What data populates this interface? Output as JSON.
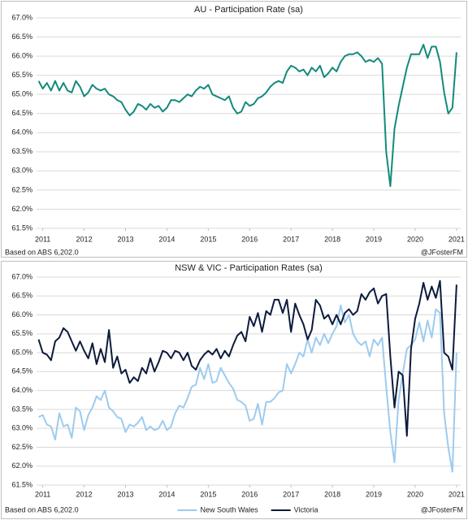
{
  "chart_data": [
    {
      "type": "line",
      "title": "AU - Participation Rate (sa)",
      "x": [
        2010.9,
        2011,
        2011.1,
        2011.2,
        2011.3,
        2011.4,
        2011.5,
        2011.6,
        2011.7,
        2011.8,
        2011.9,
        2012,
        2012.1,
        2012.2,
        2012.3,
        2012.4,
        2012.5,
        2012.6,
        2012.7,
        2012.8,
        2012.9,
        2013,
        2013.1,
        2013.2,
        2013.3,
        2013.4,
        2013.5,
        2013.6,
        2013.7,
        2013.8,
        2013.9,
        2014,
        2014.1,
        2014.2,
        2014.3,
        2014.4,
        2014.5,
        2014.6,
        2014.7,
        2014.8,
        2014.9,
        2015,
        2015.1,
        2015.2,
        2015.3,
        2015.4,
        2015.5,
        2015.6,
        2015.7,
        2015.8,
        2015.9,
        2016,
        2016.1,
        2016.2,
        2016.3,
        2016.4,
        2016.5,
        2016.6,
        2016.7,
        2016.8,
        2016.9,
        2017,
        2017.1,
        2017.2,
        2017.3,
        2017.4,
        2017.5,
        2017.6,
        2017.7,
        2017.8,
        2017.9,
        2018,
        2018.1,
        2018.2,
        2018.3,
        2018.4,
        2018.5,
        2018.6,
        2018.7,
        2018.8,
        2018.9,
        2019,
        2019.1,
        2019.2,
        2019.3,
        2019.4,
        2019.5,
        2019.6,
        2019.7,
        2019.8,
        2019.9,
        2020,
        2020.1,
        2020.2,
        2020.3,
        2020.4,
        2020.5,
        2020.6,
        2020.7,
        2020.8,
        2020.9,
        2021
      ],
      "values": [
        65.35,
        65.15,
        65.3,
        65.1,
        65.35,
        65.1,
        65.3,
        65.1,
        65.05,
        65.35,
        65.2,
        64.95,
        65.05,
        65.25,
        65.15,
        65.1,
        65.15,
        65.0,
        64.95,
        64.85,
        64.8,
        64.6,
        64.45,
        64.55,
        64.75,
        64.7,
        64.6,
        64.75,
        64.65,
        64.7,
        64.55,
        64.65,
        64.85,
        64.85,
        64.8,
        64.9,
        65.0,
        64.95,
        65.1,
        65.2,
        65.15,
        65.25,
        65.0,
        64.95,
        64.9,
        64.85,
        64.95,
        64.65,
        64.5,
        64.55,
        64.8,
        64.7,
        64.75,
        64.9,
        64.95,
        65.05,
        65.2,
        65.3,
        65.35,
        65.3,
        65.6,
        65.75,
        65.7,
        65.6,
        65.65,
        65.5,
        65.7,
        65.6,
        65.75,
        65.45,
        65.55,
        65.7,
        65.6,
        65.85,
        66.0,
        66.05,
        66.05,
        66.1,
        66.0,
        65.85,
        65.9,
        65.85,
        65.95,
        65.8,
        63.5,
        62.6,
        64.1,
        64.7,
        65.2,
        65.7,
        66.05,
        66.05,
        66.05,
        66.3,
        65.95,
        66.25,
        66.25,
        65.85,
        65.05,
        64.5,
        64.65,
        66.1
      ],
      "color": "#138a7c",
      "xlim": [
        2010.85,
        2021.1
      ],
      "xticks": [
        2011,
        2012,
        2013,
        2014,
        2015,
        2016,
        2017,
        2018,
        2019,
        2020,
        2021
      ],
      "ylim": [
        61.5,
        67.0
      ],
      "yticks": [
        {
          "value": 61.5,
          "label": "61.5%"
        },
        {
          "value": 62.0,
          "label": "62.0%"
        },
        {
          "value": 62.5,
          "label": "62.5%"
        },
        {
          "value": 63.0,
          "label": "63.0%"
        },
        {
          "value": 63.5,
          "label": "63.5%"
        },
        {
          "value": 64.0,
          "label": "64.0%"
        },
        {
          "value": 64.5,
          "label": "64.5%"
        },
        {
          "value": 65.0,
          "label": "65.0%"
        },
        {
          "value": 65.5,
          "label": "65.5%"
        },
        {
          "value": 66.0,
          "label": "66.0%"
        },
        {
          "value": 66.5,
          "label": "66.5%"
        },
        {
          "value": 67.0,
          "label": "67.0%"
        }
      ],
      "grid": true,
      "source": "Based on ABS 6,202.0",
      "credit": "@JFosterFM"
    },
    {
      "type": "line",
      "title": "NSW & VIC - Participation Rates (sa)",
      "x": [
        2010.9,
        2011,
        2011.1,
        2011.2,
        2011.3,
        2011.4,
        2011.5,
        2011.6,
        2011.7,
        2011.8,
        2011.9,
        2012,
        2012.1,
        2012.2,
        2012.3,
        2012.4,
        2012.5,
        2012.6,
        2012.7,
        2012.8,
        2012.9,
        2013,
        2013.1,
        2013.2,
        2013.3,
        2013.4,
        2013.5,
        2013.6,
        2013.7,
        2013.8,
        2013.9,
        2014,
        2014.1,
        2014.2,
        2014.3,
        2014.4,
        2014.5,
        2014.6,
        2014.7,
        2014.8,
        2014.9,
        2015,
        2015.1,
        2015.2,
        2015.3,
        2015.4,
        2015.5,
        2015.6,
        2015.7,
        2015.8,
        2015.9,
        2016,
        2016.1,
        2016.2,
        2016.3,
        2016.4,
        2016.5,
        2016.6,
        2016.7,
        2016.8,
        2016.9,
        2017,
        2017.1,
        2017.2,
        2017.3,
        2017.4,
        2017.5,
        2017.6,
        2017.7,
        2017.8,
        2017.9,
        2018,
        2018.1,
        2018.2,
        2018.3,
        2018.4,
        2018.5,
        2018.6,
        2018.7,
        2018.8,
        2018.9,
        2019,
        2019.1,
        2019.2,
        2019.3,
        2019.4,
        2019.5,
        2019.6,
        2019.7,
        2019.8,
        2019.9,
        2020,
        2020.1,
        2020.2,
        2020.3,
        2020.4,
        2020.5,
        2020.6,
        2020.7,
        2020.8,
        2020.9,
        2021
      ],
      "series": [
        {
          "name": "New South Wales",
          "color": "#9dcbef",
          "values": [
            63.3,
            63.35,
            63.1,
            63.05,
            62.7,
            63.4,
            63.05,
            63.1,
            62.75,
            63.55,
            63.45,
            62.95,
            63.35,
            63.55,
            63.85,
            63.75,
            64.0,
            63.55,
            63.45,
            63.3,
            63.25,
            62.9,
            63.1,
            63.05,
            63.15,
            63.3,
            62.95,
            63.05,
            62.95,
            63.0,
            63.2,
            62.95,
            63.05,
            63.4,
            63.6,
            63.55,
            63.8,
            64.1,
            64.15,
            64.6,
            64.3,
            64.7,
            64.2,
            64.25,
            64.6,
            64.4,
            64.2,
            64.05,
            63.75,
            63.7,
            63.6,
            63.2,
            63.25,
            63.65,
            63.1,
            63.7,
            63.7,
            63.8,
            63.95,
            64.0,
            64.7,
            64.45,
            64.7,
            65.0,
            64.9,
            65.35,
            65.0,
            65.4,
            65.2,
            65.5,
            65.25,
            65.5,
            65.7,
            66.25,
            65.8,
            66.0,
            65.5,
            65.3,
            65.2,
            65.3,
            64.9,
            65.35,
            65.2,
            65.4,
            64.1,
            62.9,
            62.1,
            63.75,
            64.45,
            65.1,
            65.2,
            65.35,
            65.8,
            65.3,
            65.85,
            65.4,
            66.15,
            66.05,
            63.4,
            62.5,
            61.85,
            65.0
          ]
        },
        {
          "name": "Victoria",
          "color": "#0c1a3c",
          "values": [
            65.35,
            65.0,
            64.95,
            64.8,
            65.3,
            65.4,
            65.65,
            65.55,
            65.3,
            65.05,
            65.3,
            65.05,
            64.85,
            65.25,
            64.7,
            65.1,
            64.75,
            65.6,
            64.6,
            64.9,
            64.45,
            64.55,
            64.2,
            64.35,
            64.25,
            64.6,
            64.45,
            64.85,
            64.5,
            64.75,
            65.05,
            65.0,
            64.85,
            65.05,
            65.0,
            64.8,
            65.0,
            64.65,
            64.55,
            64.8,
            64.95,
            65.05,
            64.95,
            65.1,
            64.85,
            65.05,
            64.9,
            65.2,
            65.45,
            65.55,
            65.3,
            65.95,
            65.7,
            66.05,
            65.55,
            66.1,
            66.0,
            66.4,
            66.4,
            66.05,
            66.4,
            65.55,
            66.3,
            66.0,
            65.75,
            65.35,
            65.6,
            66.4,
            66.25,
            65.9,
            66.0,
            65.75,
            66.0,
            65.75,
            66.05,
            66.15,
            66.0,
            66.1,
            66.55,
            66.4,
            66.6,
            66.7,
            66.3,
            66.5,
            66.55,
            64.9,
            63.55,
            64.5,
            64.4,
            62.8,
            65.1,
            65.9,
            66.3,
            66.85,
            66.4,
            66.75,
            66.45,
            66.9,
            65.0,
            64.9,
            64.55,
            66.8
          ]
        }
      ],
      "xlim": [
        2010.85,
        2021.1
      ],
      "xticks": [
        2011,
        2012,
        2013,
        2014,
        2015,
        2016,
        2017,
        2018,
        2019,
        2020,
        2021
      ],
      "ylim": [
        61.5,
        67.0
      ],
      "yticks": [
        {
          "value": 61.5,
          "label": "61.5%"
        },
        {
          "value": 62.0,
          "label": "62.0%"
        },
        {
          "value": 62.5,
          "label": "62.5%"
        },
        {
          "value": 63.0,
          "label": "63.0%"
        },
        {
          "value": 63.5,
          "label": "63.5%"
        },
        {
          "value": 64.0,
          "label": "64.0%"
        },
        {
          "value": 64.5,
          "label": "64.5%"
        },
        {
          "value": 65.0,
          "label": "65.0%"
        },
        {
          "value": 65.5,
          "label": "65.5%"
        },
        {
          "value": 66.0,
          "label": "66.0%"
        },
        {
          "value": 66.5,
          "label": "66.5%"
        },
        {
          "value": 67.0,
          "label": "67.0%"
        }
      ],
      "grid": true,
      "legend": "bottom",
      "source": "Based on ABS 6,202.0",
      "credit": "@JFosterFM"
    }
  ]
}
